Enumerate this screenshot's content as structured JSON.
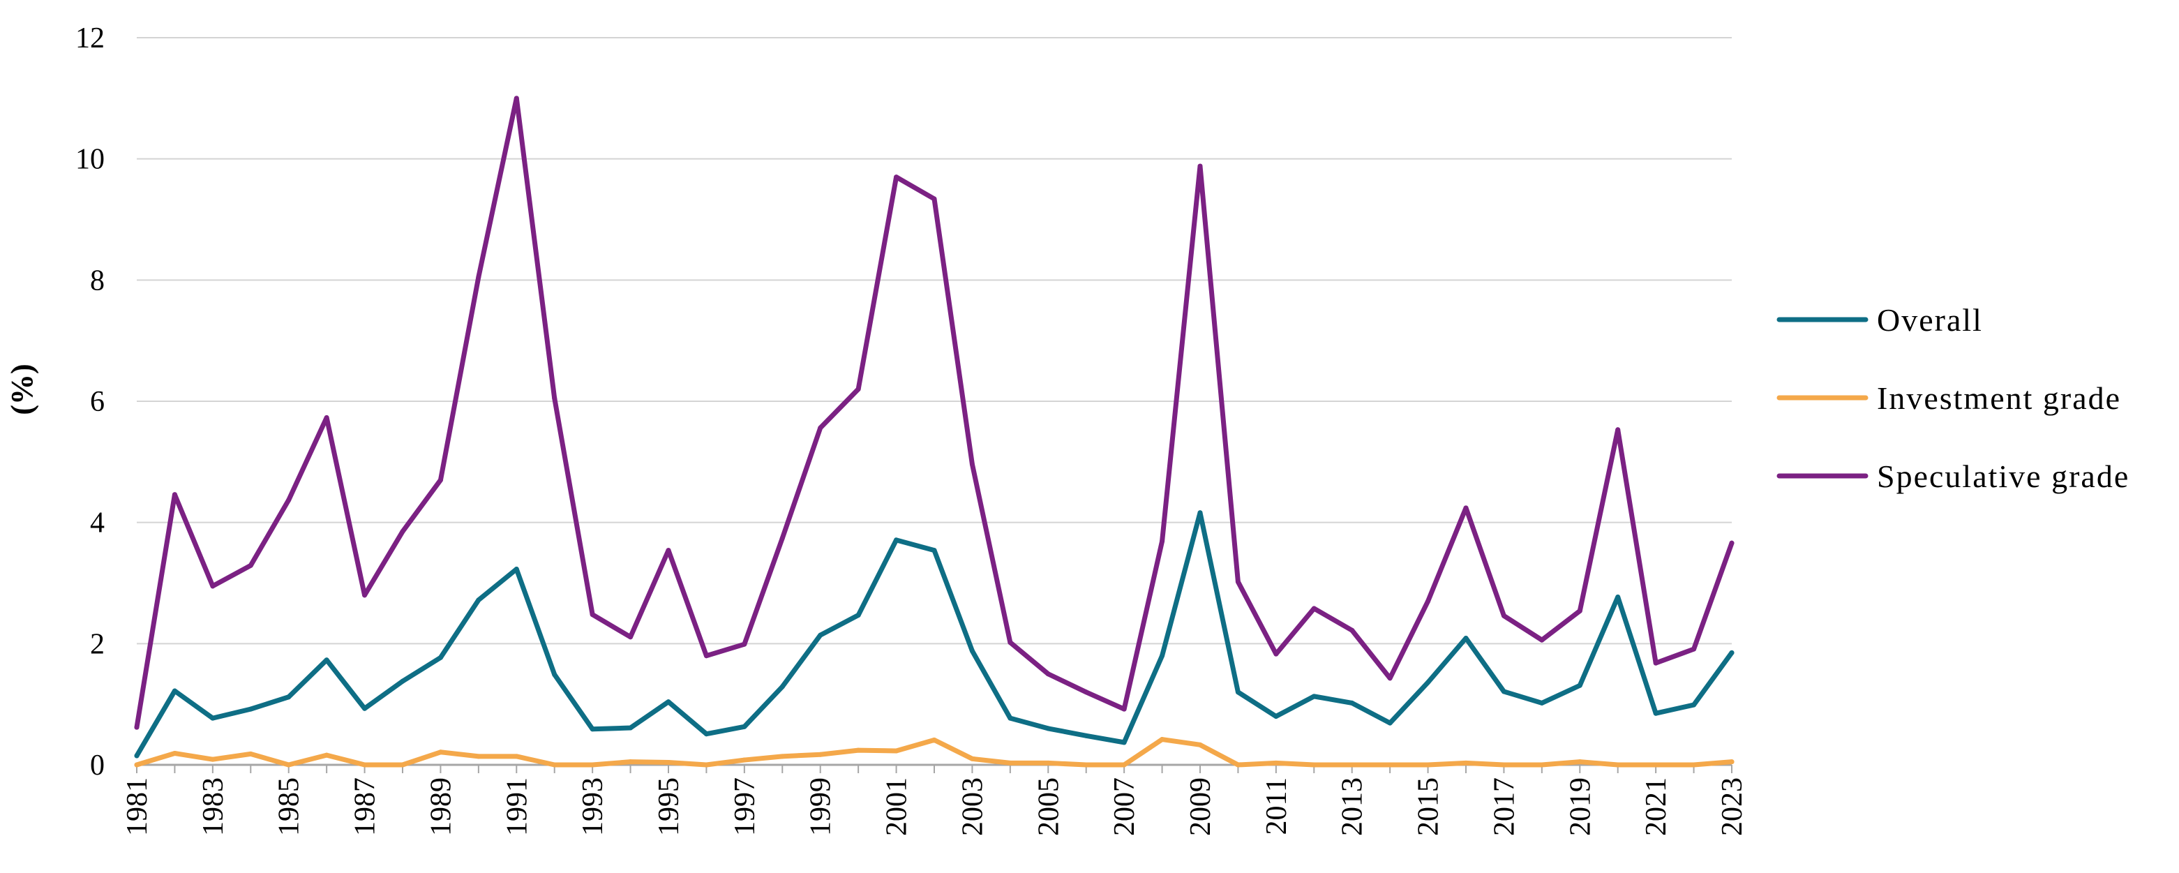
{
  "chart_data": {
    "type": "line",
    "title": "",
    "xlabel": "",
    "ylabel": "(%)",
    "ylim": [
      0,
      12
    ],
    "yticks": [
      "0",
      "2",
      "4",
      "6",
      "8",
      "10",
      "12"
    ],
    "grid": true,
    "legend_position": "right",
    "x": [
      1981,
      1982,
      1983,
      1984,
      1985,
      1986,
      1987,
      1988,
      1989,
      1990,
      1991,
      1992,
      1993,
      1994,
      1995,
      1996,
      1997,
      1998,
      1999,
      2000,
      2001,
      2002,
      2003,
      2004,
      2005,
      2006,
      2007,
      2008,
      2009,
      2010,
      2011,
      2012,
      2013,
      2014,
      2015,
      2016,
      2017,
      2018,
      2019,
      2020,
      2021,
      2022,
      2023
    ],
    "xtick_labels": [
      "1981",
      "1983",
      "1985",
      "1987",
      "1989",
      "1991",
      "1993",
      "1995",
      "1997",
      "1999",
      "2001",
      "2003",
      "2005",
      "2007",
      "2009",
      "2011",
      "2013",
      "2015",
      "2017",
      "2019",
      "2021",
      "2023"
    ],
    "series": [
      {
        "name": "Overall",
        "color": "#0e6e85",
        "values": [
          0.15,
          1.22,
          0.77,
          0.92,
          1.12,
          1.73,
          0.93,
          1.38,
          1.77,
          2.72,
          3.23,
          1.49,
          0.59,
          0.61,
          1.04,
          0.51,
          0.63,
          1.29,
          2.14,
          2.47,
          3.71,
          3.54,
          1.88,
          0.77,
          0.6,
          0.48,
          0.37,
          1.8,
          4.16,
          1.2,
          0.8,
          1.13,
          1.02,
          0.69,
          1.36,
          2.09,
          1.21,
          1.02,
          1.31,
          2.77,
          0.85,
          0.99,
          1.85
        ]
      },
      {
        "name": "Investment grade",
        "color": "#f4a84a",
        "values": [
          0.0,
          0.19,
          0.09,
          0.18,
          0.0,
          0.16,
          0.0,
          0.0,
          0.21,
          0.14,
          0.14,
          0.0,
          0.0,
          0.05,
          0.04,
          0.0,
          0.08,
          0.14,
          0.17,
          0.24,
          0.23,
          0.41,
          0.1,
          0.03,
          0.03,
          0.0,
          0.0,
          0.42,
          0.33,
          0.0,
          0.03,
          0.0,
          0.0,
          0.0,
          0.0,
          0.03,
          0.0,
          0.0,
          0.05,
          0.0,
          0.0,
          0.0,
          0.05
        ]
      },
      {
        "name": "Speculative grade",
        "color": "#7b2183",
        "values": [
          0.62,
          4.46,
          2.95,
          3.29,
          4.37,
          5.73,
          2.8,
          3.85,
          4.7,
          8.05,
          11.0,
          6.05,
          2.48,
          2.11,
          3.54,
          1.8,
          1.99,
          3.74,
          5.56,
          6.2,
          9.7,
          9.34,
          4.96,
          2.02,
          1.5,
          1.2,
          0.92,
          3.69,
          9.88,
          3.02,
          1.83,
          2.58,
          2.22,
          1.43,
          2.7,
          4.24,
          2.46,
          2.06,
          2.54,
          5.53,
          1.68,
          1.91,
          3.66
        ]
      }
    ]
  }
}
